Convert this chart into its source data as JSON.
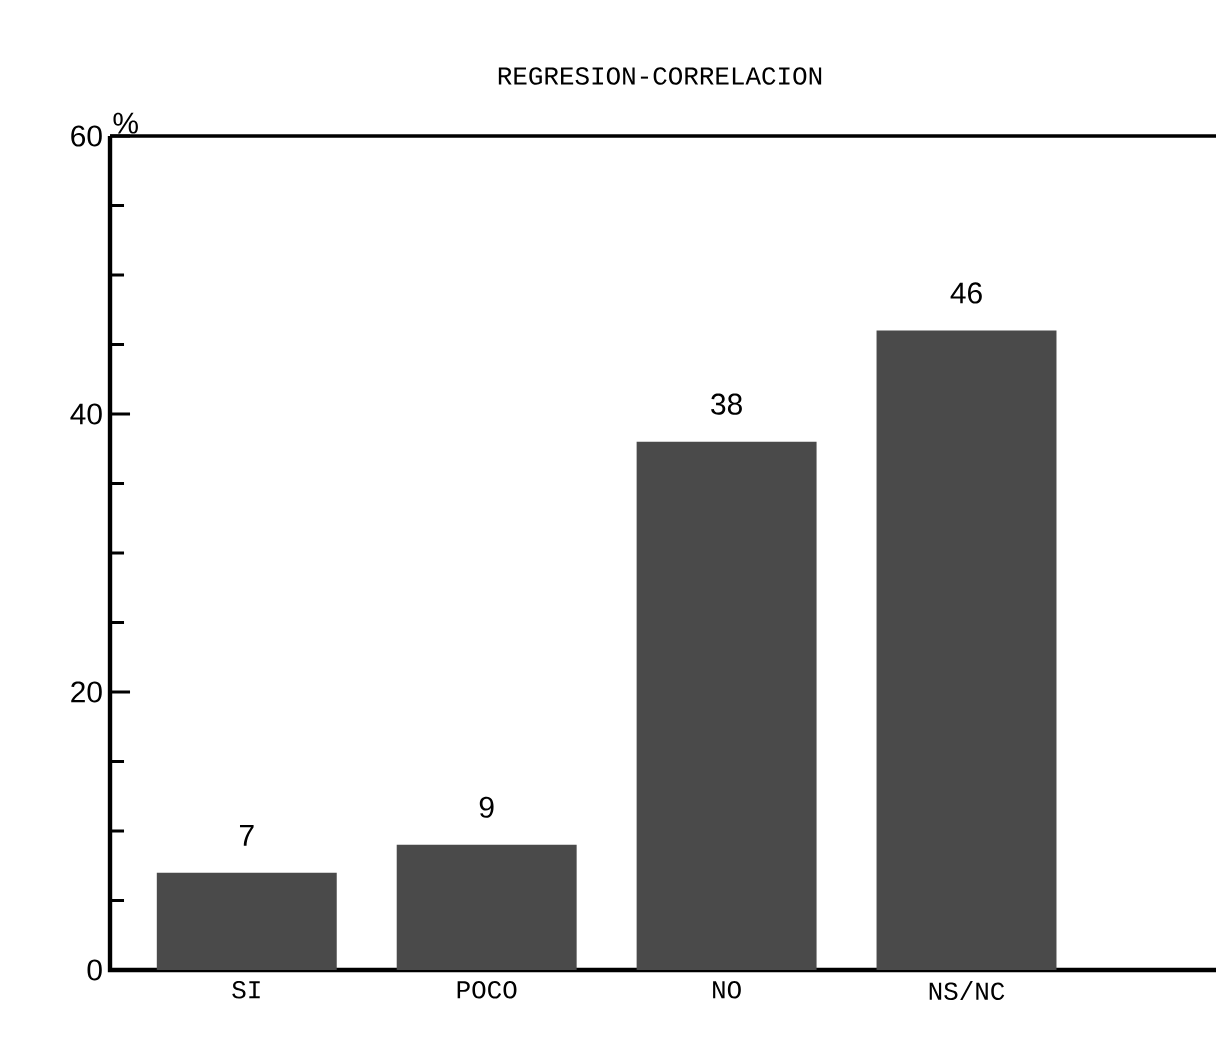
{
  "chart_data": {
    "type": "bar",
    "title": "REGRESION-CORRELACION",
    "ylabel": "%",
    "categories": [
      "SI",
      "POCO",
      "NO",
      "NS/NC"
    ],
    "values": [
      7,
      9,
      38,
      46
    ],
    "color": "#4a4a4a",
    "ylim": [
      0,
      60
    ],
    "yticks": [
      0,
      20,
      40,
      60
    ],
    "data_labels": true
  }
}
